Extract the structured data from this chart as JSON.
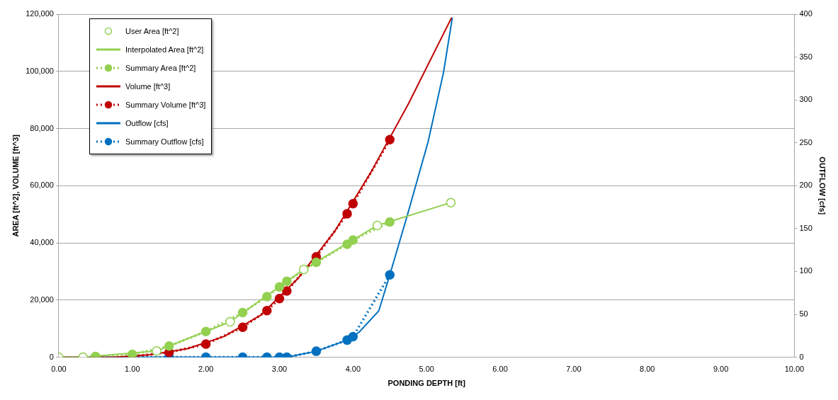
{
  "chart_data": {
    "type": "line",
    "xlabel": "PONDING DEPTH [ft]",
    "ylabel": "AREA [ft^2], VOLUME [ft^3]",
    "y2label": "OUTFLOW [cfs]",
    "xlim": [
      0,
      10
    ],
    "xticks": [
      {
        "value": 0,
        "label": "0.00"
      },
      {
        "value": 1,
        "label": "1.00"
      },
      {
        "value": 2,
        "label": "2.00"
      },
      {
        "value": 3,
        "label": "3.00"
      },
      {
        "value": 4,
        "label": "4.00"
      },
      {
        "value": 5,
        "label": "5.00"
      },
      {
        "value": 6,
        "label": "6.00"
      },
      {
        "value": 7,
        "label": "7.00"
      },
      {
        "value": 8,
        "label": "8.00"
      },
      {
        "value": 9,
        "label": "9.00"
      },
      {
        "value": 10,
        "label": "10.00"
      }
    ],
    "ylim": [
      0,
      120000
    ],
    "yticks": [
      0,
      {
        "value": 20000,
        "label": "20,000"
      },
      {
        "value": 40000,
        "label": "40,000"
      },
      {
        "value": 60000,
        "label": "60,000"
      },
      {
        "value": 80000,
        "label": "80,000"
      },
      {
        "value": 100000,
        "label": "100,000"
      },
      {
        "value": 120000,
        "label": "120,000"
      }
    ],
    "y2lim": [
      0,
      400
    ],
    "y2ticks": [
      0,
      50,
      100,
      150,
      200,
      250,
      300,
      350,
      400
    ],
    "grid": "y",
    "legend": "top left",
    "series": [
      {
        "name": "User Area [ft^2]",
        "type": "scatter",
        "marker": "circle",
        "color": "#92d050",
        "x": [
          0,
          0.33,
          1.33,
          2.33,
          3.33,
          4.33,
          5.33
        ],
        "values": [
          0,
          0,
          2200,
          12400,
          30700,
          46100,
          54100
        ]
      },
      {
        "name": "Interpolated Area [ft^2]",
        "marker": "none",
        "line_style": "solid",
        "color": "#92d050",
        "x": [
          0,
          0.33,
          1.33,
          2.33,
          3.33,
          4.33,
          5.33
        ],
        "values": [
          0,
          0,
          2200,
          12400,
          30700,
          46100,
          54100
        ]
      },
      {
        "name": "Summary Area [ft^2]",
        "marker": "circle",
        "line_style": "dotted",
        "color": "#92d050",
        "x": [
          0.5,
          1,
          1.5,
          2,
          2.5,
          2.83,
          3,
          3.1,
          3.5,
          3.92,
          4,
          4.5
        ],
        "values": [
          300,
          1000,
          3900,
          9000,
          15600,
          21200,
          24600,
          26600,
          33200,
          39500,
          41000,
          47300
        ]
      },
      {
        "name": "Volume [ft^3]",
        "marker": "none",
        "line_style": "solid",
        "color": "#c00000",
        "x": [
          0,
          0.75,
          1.25,
          1.75,
          2.25,
          2.75,
          3.25,
          3.75,
          4.25,
          4.75,
          5.34
        ],
        "values": [
          0,
          0,
          900,
          3000,
          7300,
          14800,
          27500,
          44000,
          65000,
          88500,
          118800
        ]
      },
      {
        "name": "Summary Volume [ft^3]",
        "marker": "circle",
        "line_style": "dotted",
        "color": "#c00000",
        "x": [
          0.5,
          1,
          1.5,
          2,
          2.5,
          2.83,
          3,
          3.1,
          3.5,
          3.92,
          4,
          4.5
        ],
        "values": [
          0,
          300,
          1700,
          4600,
          10500,
          16300,
          20500,
          23200,
          35100,
          50200,
          53700,
          76100
        ]
      },
      {
        "name": "Outflow [cfs]",
        "marker": "none",
        "line_style": "solid",
        "axis": "y2",
        "color": "#0070c0",
        "x": [
          0,
          3.1,
          3.5,
          3.92,
          4.08,
          4.35,
          4.5,
          4.74,
          5.02,
          5.23,
          5.35
        ],
        "values": [
          0,
          0,
          7,
          20,
          29,
          54,
          96,
          166,
          251,
          332,
          396
        ]
      },
      {
        "name": "Summary Outflow [cfs]",
        "marker": "circle",
        "line_style": "dotted",
        "axis": "y2",
        "color": "#0070c0",
        "x": [
          0.5,
          1,
          1.5,
          2,
          2.5,
          2.83,
          3,
          3.1,
          3.5,
          3.92,
          4,
          4.5
        ],
        "values": [
          0,
          0,
          0,
          0,
          0,
          0,
          0,
          0,
          7,
          20,
          24,
          96
        ]
      }
    ]
  }
}
